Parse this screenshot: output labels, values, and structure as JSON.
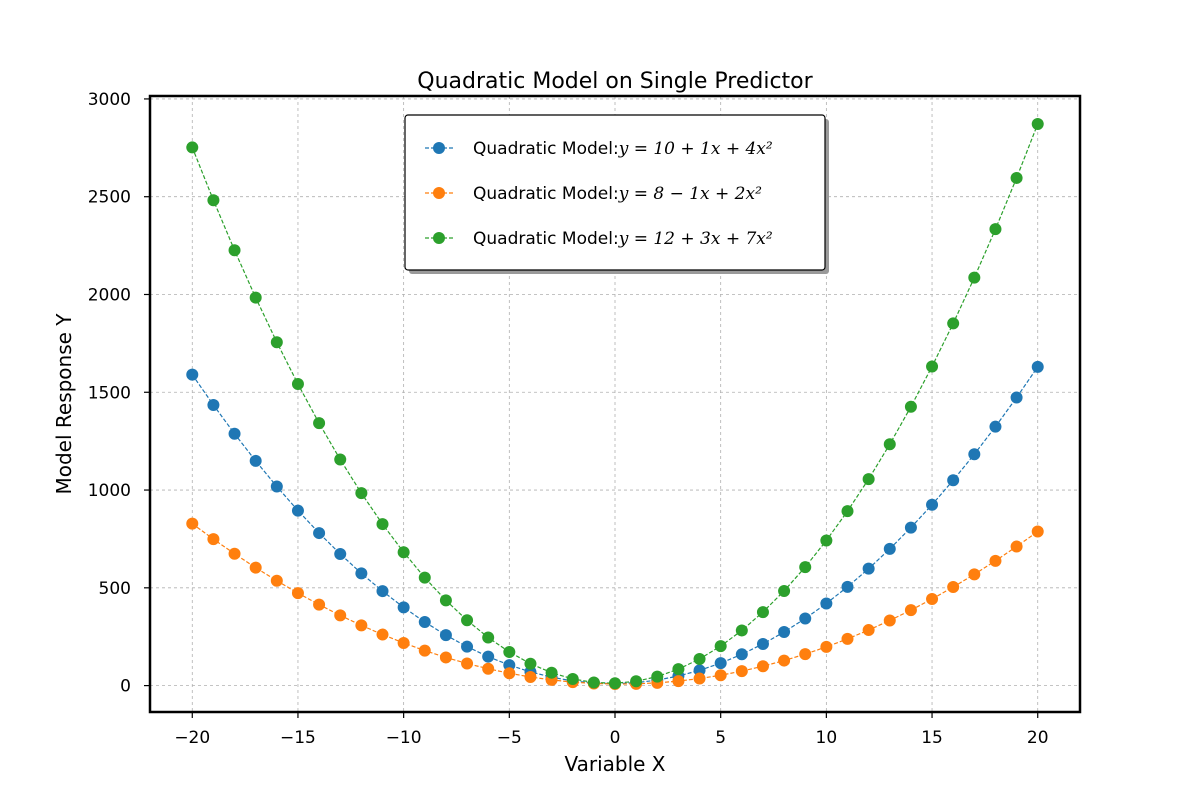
{
  "chart_data": {
    "type": "line",
    "title": "Quadratic Model on Single Predictor",
    "xlabel": "Variable X",
    "ylabel": "Model Response Y",
    "xlim": [
      -22,
      22
    ],
    "ylim": [
      -135,
      3015
    ],
    "xticks": [
      -20,
      -15,
      -10,
      -5,
      0,
      5,
      10,
      15,
      20
    ],
    "xtick_labels": [
      "−20",
      "−15",
      "−10",
      "−5",
      "0",
      "5",
      "10",
      "15",
      "20"
    ],
    "yticks": [
      0,
      500,
      1000,
      1500,
      2000,
      2500,
      3000
    ],
    "ytick_labels": [
      "0",
      "500",
      "1000",
      "1500",
      "2000",
      "2500",
      "3000"
    ],
    "grid": true,
    "legend_position": "upper-center",
    "x": [
      -20,
      -19,
      -18,
      -17,
      -16,
      -15,
      -14,
      -13,
      -12,
      -11,
      -10,
      -9,
      -8,
      -7,
      -6,
      -5,
      -4,
      -3,
      -2,
      -1,
      0,
      1,
      2,
      3,
      4,
      5,
      6,
      7,
      8,
      9,
      10,
      11,
      12,
      13,
      14,
      15,
      16,
      17,
      18,
      19,
      20
    ],
    "series": [
      {
        "name": "Quadratic Model:",
        "formula": "y = 10 + 1x + 4x²",
        "coefficients": [
          10,
          1,
          4
        ],
        "color": "#1f77b4",
        "values": [
          1590,
          1435,
          1288,
          1149,
          1018,
          895,
          780,
          673,
          574,
          483,
          400,
          325,
          258,
          199,
          148,
          105,
          70,
          43,
          24,
          13,
          10,
          15,
          28,
          49,
          78,
          115,
          160,
          213,
          274,
          343,
          420,
          505,
          598,
          699,
          808,
          925,
          1050,
          1183,
          1324,
          1473,
          1630
        ]
      },
      {
        "name": "Quadratic Model:",
        "formula": "y = 8 − 1x + 2x²",
        "coefficients": [
          8,
          -1,
          2
        ],
        "color": "#ff7f0e",
        "values": [
          828,
          749,
          674,
          603,
          536,
          473,
          414,
          359,
          308,
          261,
          218,
          179,
          144,
          113,
          86,
          63,
          44,
          29,
          18,
          11,
          8,
          9,
          14,
          23,
          36,
          53,
          74,
          99,
          128,
          161,
          198,
          239,
          284,
          333,
          386,
          443,
          504,
          569,
          638,
          711,
          788
        ]
      },
      {
        "name": "Quadratic Model:",
        "formula": "y = 12 + 3x + 7x²",
        "coefficients": [
          12,
          3,
          7
        ],
        "color": "#2ca02c",
        "values": [
          2752,
          2482,
          2226,
          1984,
          1756,
          1542,
          1342,
          1156,
          984,
          826,
          682,
          552,
          436,
          334,
          246,
          172,
          112,
          66,
          34,
          16,
          12,
          22,
          46,
          84,
          136,
          202,
          282,
          376,
          484,
          606,
          742,
          892,
          1056,
          1234,
          1426,
          1632,
          1852,
          2086,
          2334,
          2596,
          2872
        ]
      }
    ]
  }
}
